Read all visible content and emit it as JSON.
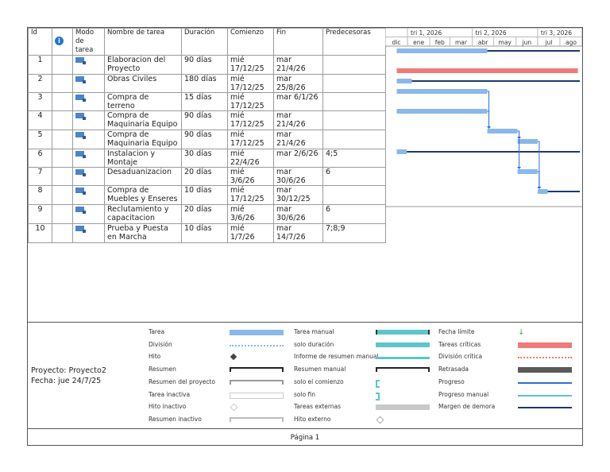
{
  "columns": {
    "id": "Id",
    "mode": "Modo de tarea",
    "name": "Nombre de tarea",
    "duration": "Duración",
    "start": "Comienzo",
    "end": "Fin",
    "pred": "Predecesoras"
  },
  "tasks": [
    {
      "id": "1",
      "name": "Elaboracion del Proyecto",
      "duration": "90 días",
      "start": "mié 17/12/25",
      "end": "mar 21/4/26",
      "pred": ""
    },
    {
      "id": "2",
      "name": "Obras Civiles",
      "duration": "180 días",
      "start": "mié 17/12/25",
      "end": "mar 25/8/26",
      "pred": ""
    },
    {
      "id": "3",
      "name": "Compra de terreno",
      "duration": "15 días",
      "start": "mié 17/12/25",
      "end": "mar 6/1/26",
      "pred": ""
    },
    {
      "id": "4",
      "name": "Compra de Maquinaria Equipo",
      "duration": "90 días",
      "start": "mié 17/12/25",
      "end": "mar 21/4/26",
      "pred": ""
    },
    {
      "id": "5",
      "name": "Compra de Maquinaria Equipo",
      "duration": "90 días",
      "start": "mié 17/12/25",
      "end": "mar 21/4/26",
      "pred": ""
    },
    {
      "id": "6",
      "name": "Instalacion y Montaje",
      "duration": "30 días",
      "start": "mié 22/4/26",
      "end": "mar 2/6/26",
      "pred": "4;5"
    },
    {
      "id": "7",
      "name": "Desaduanizacion",
      "duration": "20 días",
      "start": "mié 3/6/26",
      "end": "mar 30/6/26",
      "pred": "6"
    },
    {
      "id": "8",
      "name": "Compra de Muebles y Enseres",
      "duration": "10 días",
      "start": "mié 17/12/25",
      "end": "mar 30/12/25",
      "pred": ""
    },
    {
      "id": "9",
      "name": "Reclutamiento y capacitacion",
      "duration": "20 días",
      "start": "mié 3/6/26",
      "end": "mar 30/6/26",
      "pred": "6"
    },
    {
      "id": "10",
      "name": "Prueba y Puesta en Marcha",
      "duration": "10 días",
      "start": "mié 1/7/26",
      "end": "mar 14/7/26",
      "pred": "7;8;9"
    }
  ],
  "timescale": {
    "quarters": [
      "tri 1, 2026",
      "tri 2, 2026",
      "tri 3, 2026"
    ],
    "months": [
      "dic",
      "ene",
      "feb",
      "mar",
      "abr",
      "may",
      "jun",
      "jul",
      "ago"
    ]
  },
  "project": {
    "name_line": "Proyecto: Proyecto2",
    "date_line": "Fecha: jue 24/7/25"
  },
  "legend": {
    "col1": [
      "Tarea",
      "División",
      "Hito",
      "Resumen",
      "Resumen del proyecto",
      "Tarea inactiva",
      "Hito inactivo",
      "Resumen inactivo"
    ],
    "col2": [
      "Tarea manual",
      "solo duración",
      "Informe de resumen manual",
      "Resumen manual",
      "solo el comienzo",
      "solo fin",
      "Tareas externas",
      "Hito externo"
    ],
    "col3": [
      "Fecha límite",
      "Tareas críticas",
      "División crítica",
      "Retrasada",
      "Progreso",
      "Progreso manual",
      "Margen de demora"
    ]
  },
  "colors": {
    "task": "#8ab8e8",
    "critical": "#f07a78",
    "progress": "#1a3a6e",
    "manual": "#5cc6c8",
    "delay": "#5a5a5a"
  },
  "footer": "Página 1"
}
